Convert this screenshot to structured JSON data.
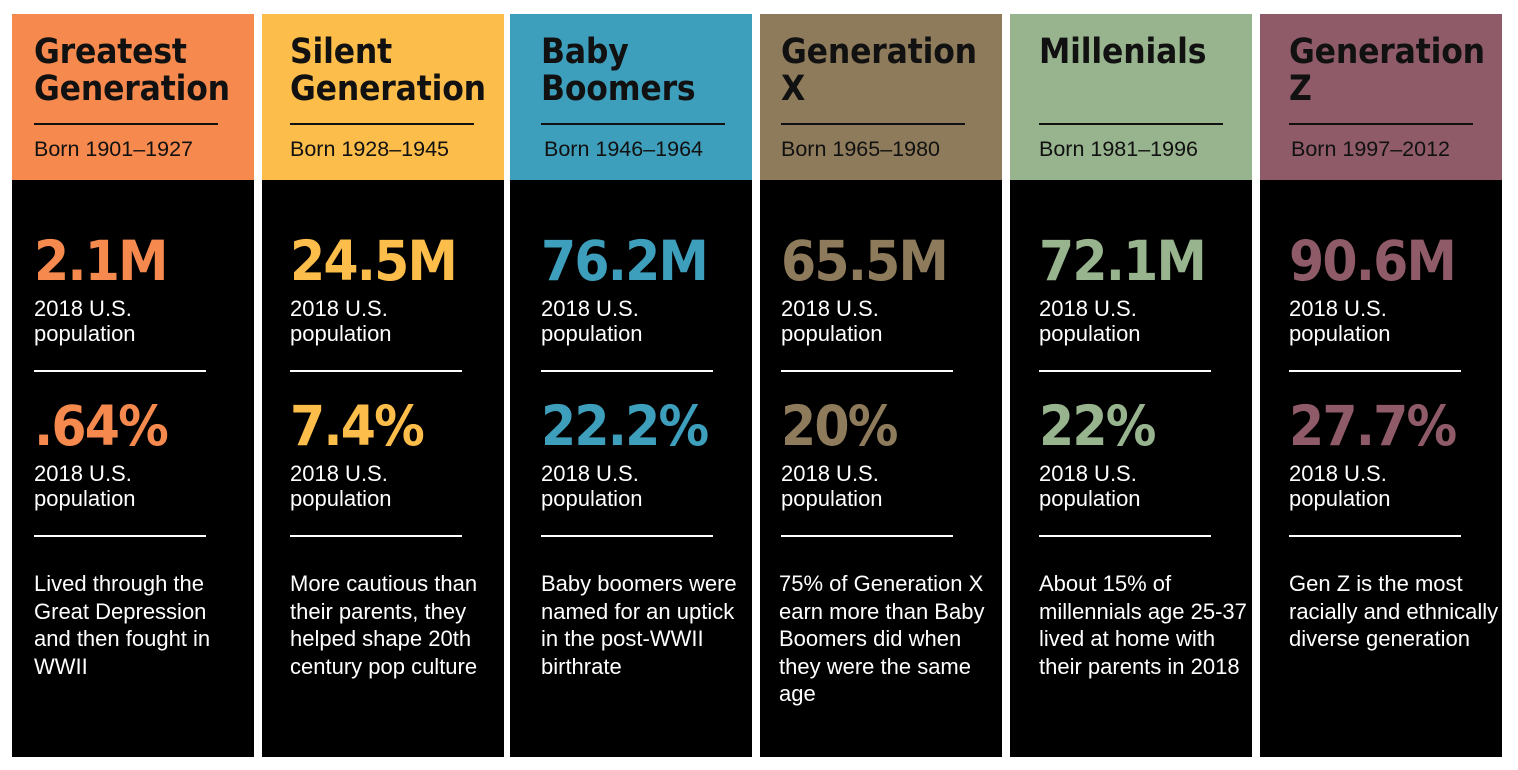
{
  "generations": [
    {
      "name": "Greatest\nGeneration",
      "born": "Born 1901–1927",
      "color": "#f68a4e",
      "population_value": "2.1M",
      "population_label": "2018 U.S. population",
      "share_value": ".64%",
      "share_label": "2018 U.S. population",
      "description": "Lived through the Great Depression and then fought in WWII"
    },
    {
      "name": "Silent\nGeneration",
      "born": "Born 1928–1945",
      "color": "#fcbd4a",
      "population_value": "24.5M",
      "population_label": "2018 U.S. population",
      "share_value": "7.4%",
      "share_label": "2018 U.S. population",
      "description": "More cautious than their parents, they helped shape 20th century pop culture"
    },
    {
      "name": "Baby\nBoomers",
      "born": "Born 1946–1964",
      "color": "#3e9fbd",
      "population_value": "76.2M",
      "population_label": "2018 U.S. population",
      "share_value": "22.2%",
      "share_label": "2018 U.S. population",
      "description": "Baby boomers were named for an uptick in the post-WWII birthrate"
    },
    {
      "name": "Generation\nX",
      "born": "Born 1965–1980",
      "color": "#8e7b5b",
      "population_value": "65.5M",
      "population_label": "2018 U.S. population",
      "share_value": "20%",
      "share_label": "2018 U.S. population",
      "description": "75% of Generation X earn more than Baby Boomers did when they were the same age"
    },
    {
      "name": "Millenials",
      "born": "Born 1981–1996",
      "color": "#98b48e",
      "population_value": "72.1M",
      "population_label": "2018 U.S. population",
      "share_value": "22%",
      "share_label": "2018 U.S. population",
      "description": "About 15% of millennials age 25-37 lived at home with their parents in 2018"
    },
    {
      "name": "Generation\nZ",
      "born": "Born 1997–2012",
      "color": "#8f5b69",
      "population_value": "90.6M",
      "population_label": "2018 U.S. population",
      "share_value": "27.7%",
      "share_label": "2018 U.S. population",
      "description": "Gen Z is the most racially and ethnically diverse generation"
    }
  ]
}
